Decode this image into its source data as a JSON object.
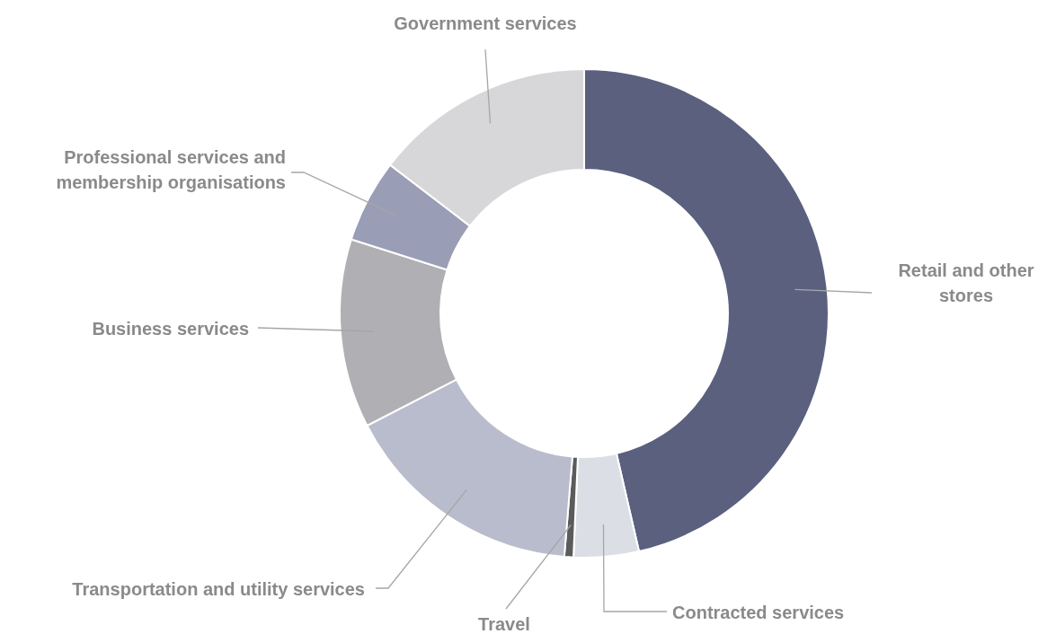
{
  "chart_data": {
    "type": "donut",
    "categories": [
      "Retail and other stores",
      "Contracted services",
      "Travel",
      "Transportation and utility services",
      "Business services",
      "Professional services and membership organisations",
      "Government services"
    ],
    "values": [
      46.4,
      4.3,
      0.6,
      16.1,
      12.5,
      5.5,
      14.6
    ],
    "colors": [
      "#5a607e",
      "#dcdee5",
      "#5b5b5b",
      "#b9bccc",
      "#b0afb3",
      "#999db5",
      "#d7d7da"
    ]
  }
}
